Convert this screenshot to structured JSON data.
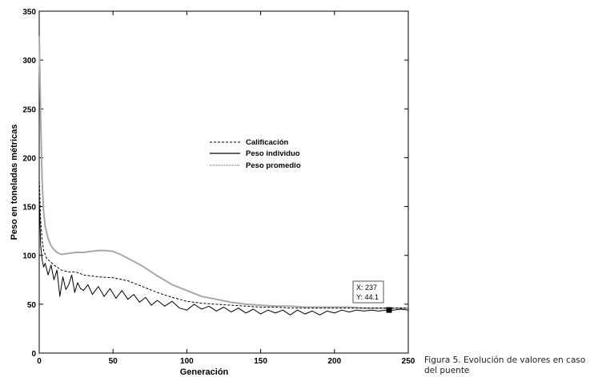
{
  "caption": "Figura 5. Evolución de valores en caso del puente",
  "datatip": {
    "x_label": "X: 237",
    "y_label": "Y: 44.1",
    "x": 237,
    "y": 44.1
  },
  "chart_data": {
    "type": "line",
    "xlabel": "Generación",
    "ylabel": "Peso en toneladas métricas",
    "xlim": [
      0,
      250
    ],
    "ylim": [
      0,
      350
    ],
    "xticks": [
      "0",
      "50",
      "100",
      "150",
      "200",
      "250"
    ],
    "yticks": [
      "0",
      "50",
      "100",
      "150",
      "200",
      "250",
      "300",
      "350"
    ],
    "grid": false,
    "legend_position": "center",
    "series": [
      {
        "name": "Calificación",
        "style": "dashed",
        "color": "#000000",
        "x": [
          0,
          1,
          2,
          3,
          5,
          8,
          10,
          15,
          20,
          25,
          30,
          40,
          50,
          60,
          70,
          80,
          90,
          100,
          110,
          120,
          130,
          140,
          150,
          160,
          170,
          180,
          190,
          200,
          210,
          220,
          230,
          240,
          250
        ],
        "y": [
          180,
          135,
          115,
          105,
          97,
          93,
          90,
          85,
          83,
          83,
          80,
          78,
          77,
          74,
          68,
          62,
          57,
          53,
          51,
          50,
          49,
          48,
          47,
          47,
          46,
          46,
          46,
          46,
          46,
          46,
          46,
          46,
          46
        ]
      },
      {
        "name": "Peso individuo",
        "style": "solid",
        "color": "#000000",
        "x": [
          0,
          1,
          2,
          3,
          4,
          6,
          8,
          10,
          12,
          14,
          16,
          18,
          20,
          22,
          24,
          26,
          28,
          30,
          33,
          36,
          40,
          44,
          48,
          52,
          56,
          60,
          64,
          68,
          72,
          76,
          80,
          85,
          90,
          95,
          100,
          105,
          110,
          115,
          120,
          125,
          130,
          135,
          140,
          145,
          150,
          155,
          160,
          165,
          170,
          175,
          180,
          185,
          190,
          195,
          200,
          205,
          210,
          215,
          220,
          225,
          230,
          235,
          240,
          245,
          250
        ],
        "y": [
          160,
          110,
          95,
          88,
          92,
          80,
          90,
          75,
          85,
          58,
          78,
          65,
          70,
          80,
          62,
          72,
          66,
          64,
          70,
          60,
          68,
          58,
          66,
          56,
          64,
          55,
          60,
          52,
          57,
          49,
          54,
          48,
          53,
          46,
          44,
          50,
          45,
          48,
          43,
          47,
          42,
          46,
          41,
          45,
          40,
          44,
          41,
          44,
          39,
          44,
          40,
          43,
          39,
          43,
          41,
          44,
          42,
          44,
          43,
          44,
          43,
          44,
          44,
          45,
          44
        ]
      },
      {
        "name": "Peso promedio",
        "style": "solid",
        "color": "#a8a8a8",
        "x": [
          0,
          1,
          2,
          3,
          4,
          6,
          8,
          10,
          12,
          15,
          20,
          25,
          30,
          35,
          40,
          45,
          50,
          55,
          60,
          65,
          70,
          75,
          80,
          90,
          100,
          110,
          120,
          130,
          140,
          150,
          160,
          170,
          180,
          190,
          200,
          210,
          220,
          230,
          240,
          250
        ],
        "y": [
          325,
          240,
          175,
          145,
          130,
          117,
          110,
          106,
          103,
          101,
          102,
          103,
          103,
          104,
          105,
          105,
          104,
          101,
          97,
          93,
          89,
          84,
          79,
          70,
          64,
          58,
          55,
          52,
          50,
          49,
          48,
          48,
          47,
          47,
          47,
          47,
          46,
          46,
          46,
          46
        ]
      }
    ]
  }
}
